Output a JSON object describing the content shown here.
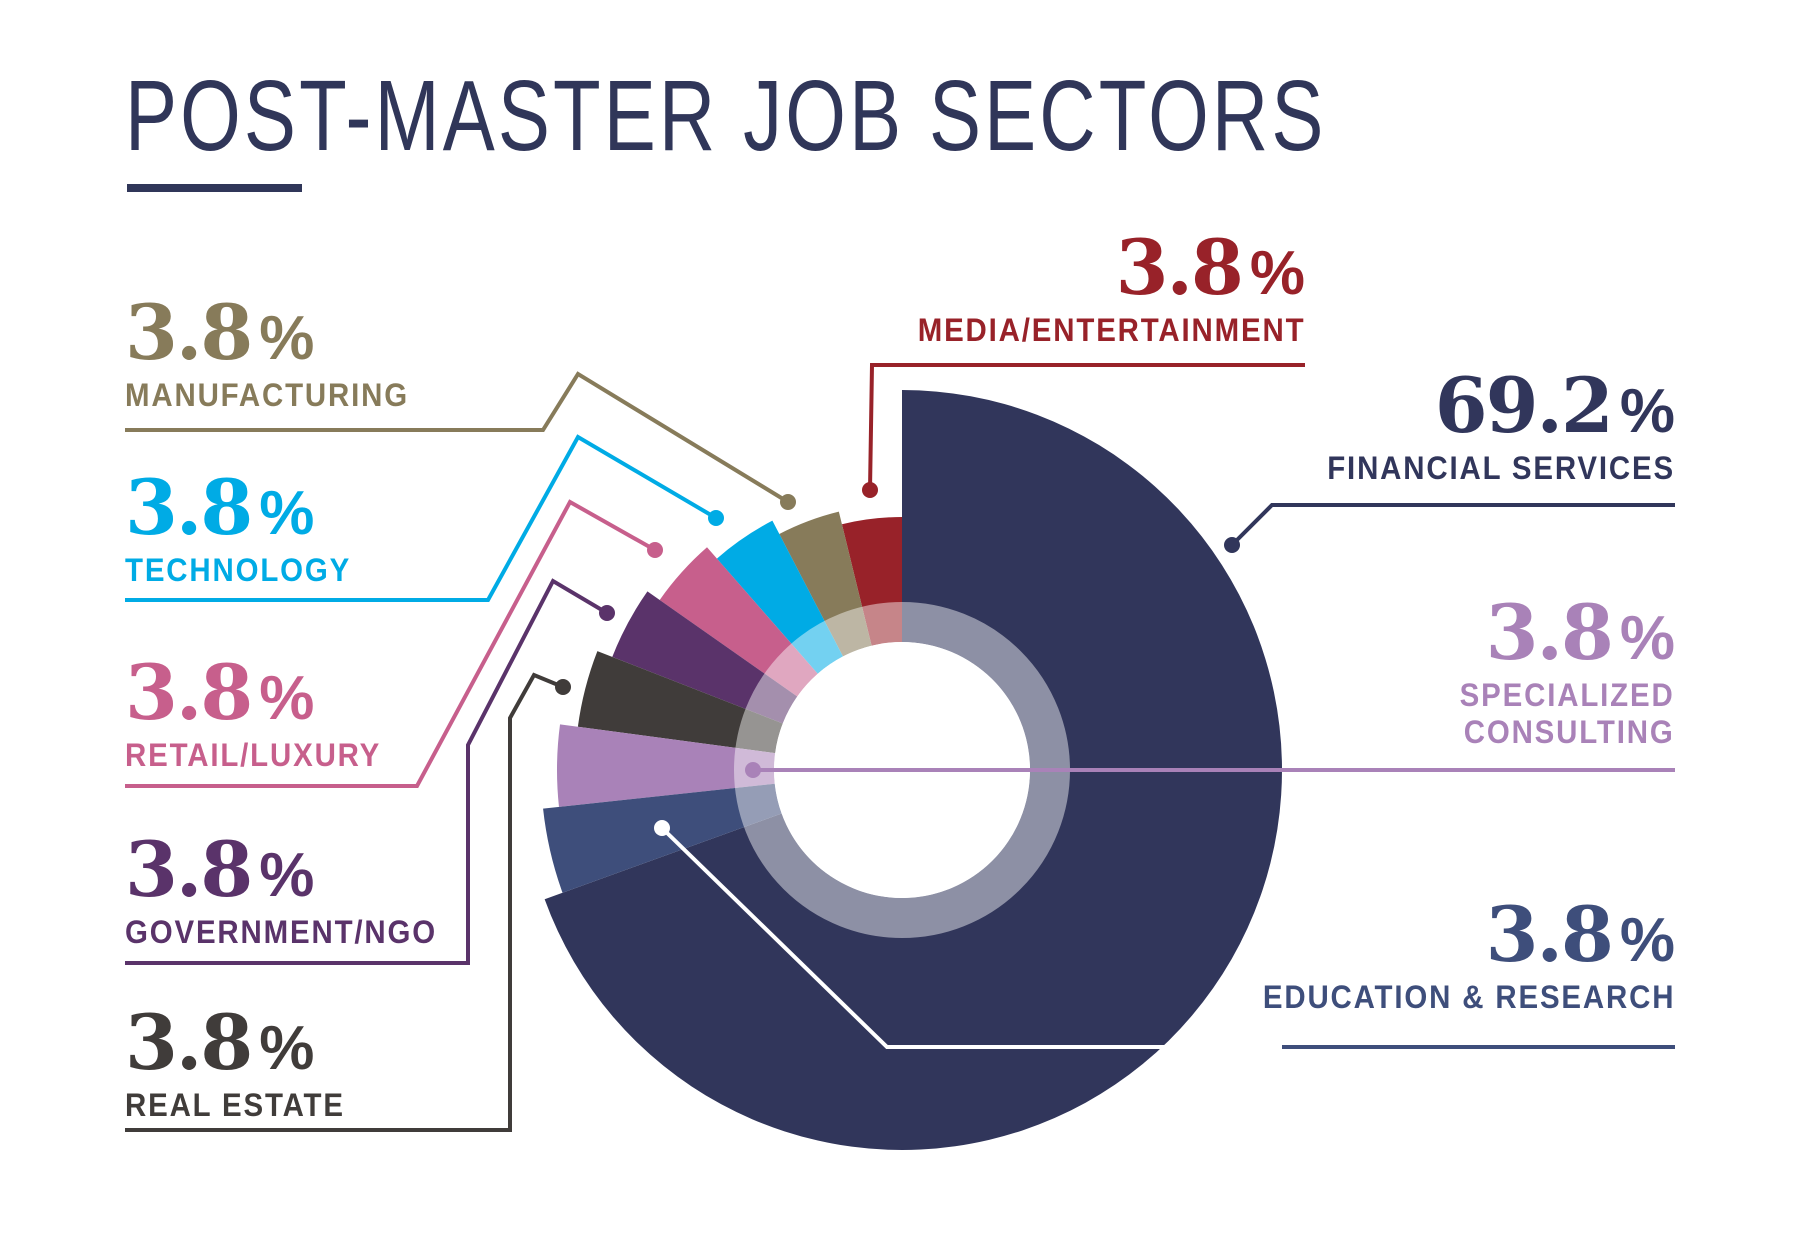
{
  "title": "POST-MASTER JOB SECTORS",
  "colors": {
    "title": "#303659",
    "ring_overlay": "rgba(255,255,255,0.45)"
  },
  "chart_data": {
    "type": "pie",
    "variant": "variable-radius donut",
    "title": "POST-MASTER JOB SECTORS",
    "unit": "%",
    "categories": [
      "Financial Services",
      "Media/Entertainment",
      "Manufacturing",
      "Technology",
      "Retail/Luxury",
      "Government/NGO",
      "Real Estate",
      "Specialized Consulting",
      "Education & Research"
    ],
    "values": [
      69.2,
      3.8,
      3.8,
      3.8,
      3.8,
      3.8,
      3.8,
      3.8,
      3.8
    ],
    "series": [
      {
        "name": "FINANCIAL SERVICES",
        "value": 69.2,
        "label": "69.2",
        "color": "#31365b"
      },
      {
        "name": "MEDIA/ENTERTAINMENT",
        "value": 3.8,
        "label": "3.8",
        "color": "#982229"
      },
      {
        "name": "MANUFACTURING",
        "value": 3.8,
        "label": "3.8",
        "color": "#877b5a"
      },
      {
        "name": "TECHNOLOGY",
        "value": 3.8,
        "label": "3.8",
        "color": "#00abe5"
      },
      {
        "name": "RETAIL/LUXURY",
        "value": 3.8,
        "label": "3.8",
        "color": "#c75f8c"
      },
      {
        "name": "GOVERNMENT/NGO",
        "value": 3.8,
        "label": "3.8",
        "color": "#5a336a"
      },
      {
        "name": "REAL ESTATE",
        "value": 3.8,
        "label": "3.8",
        "color": "#403c3a"
      },
      {
        "name": "SPECIALIZED CONSULTING",
        "value": 3.8,
        "label": "3.8",
        "color": "#a982b8"
      },
      {
        "name": "EDUCATION & RESEARCH",
        "value": 3.8,
        "label": "3.8",
        "color": "#3e4e7b"
      }
    ],
    "legend_position": "callouts around chart"
  },
  "labels": {
    "financial": {
      "pct": "69.2",
      "sym": "%",
      "name": "FINANCIAL SERVICES"
    },
    "media": {
      "pct": "3.8",
      "sym": "%",
      "name": "MEDIA/ENTERTAINMENT"
    },
    "manufacturing": {
      "pct": "3.8",
      "sym": "%",
      "name": "MANUFACTURING"
    },
    "technology": {
      "pct": "3.8",
      "sym": "%",
      "name": "TECHNOLOGY"
    },
    "retail": {
      "pct": "3.8",
      "sym": "%",
      "name": "RETAIL/LUXURY"
    },
    "government": {
      "pct": "3.8",
      "sym": "%",
      "name": "GOVERNMENT/NGO"
    },
    "realestate": {
      "pct": "3.8",
      "sym": "%",
      "name": "REAL ESTATE"
    },
    "consulting": {
      "pct": "3.8",
      "sym": "%",
      "name1": "SPECIALIZED",
      "name2": "CONSULTING"
    },
    "education": {
      "pct": "3.8",
      "sym": "%",
      "name": "EDUCATION & RESEARCH"
    }
  }
}
